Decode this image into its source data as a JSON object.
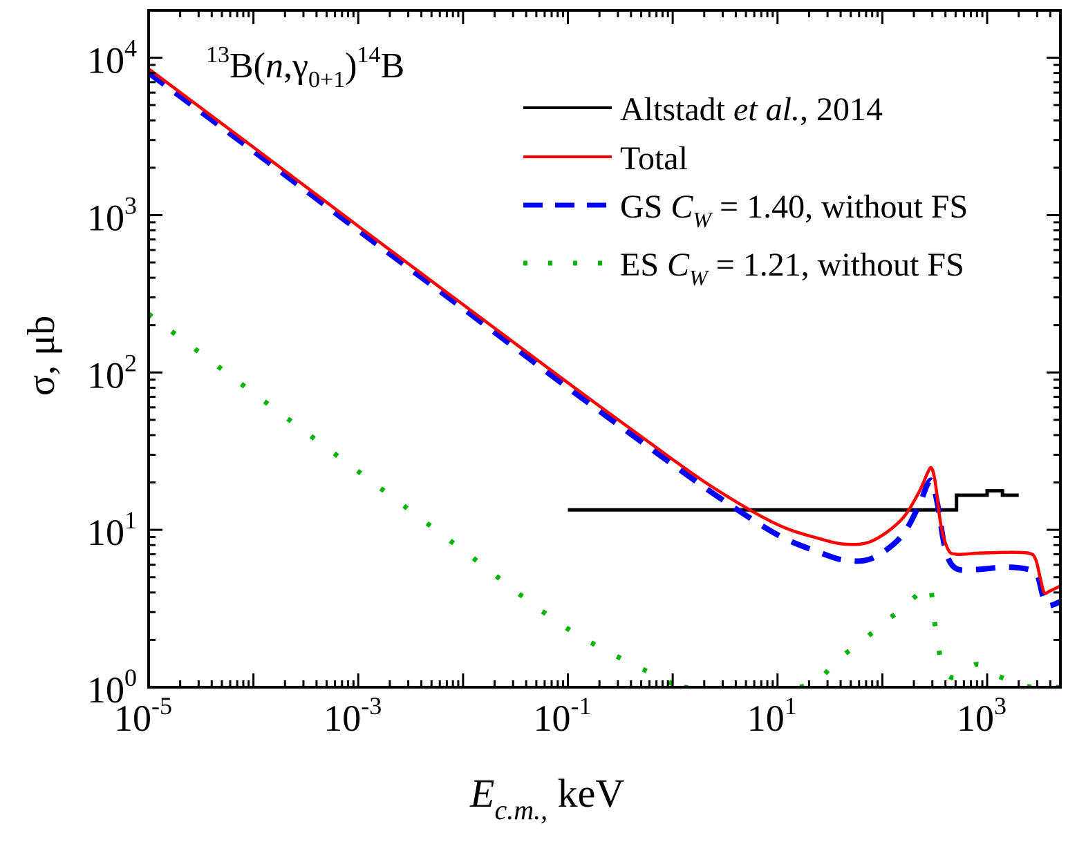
{
  "chart_data": {
    "type": "line",
    "title": "13B(n,γ0+1)14B",
    "title_parts": {
      "pre_sup": "13",
      "base": "B(",
      "italic": "n",
      "comma_gamma": ",γ",
      "sub": "0+1",
      "close": ")",
      "post_sup": "14",
      "end": "B"
    },
    "xlabel": "E_c.m., keV",
    "xlabel_parts": {
      "italic": "E",
      "sub": "c.m.,",
      "unit": " keV"
    },
    "ylabel": "σ, μb",
    "xscale": "log",
    "yscale": "log",
    "xlim": [
      1e-05,
      5000
    ],
    "ylim": [
      1,
      20000
    ],
    "grid": false,
    "legend_position": "top-right",
    "x_ticks": [
      {
        "value": 1e-05,
        "base": "10",
        "exp": "-5"
      },
      {
        "value": 0.001,
        "base": "10",
        "exp": "-3"
      },
      {
        "value": 0.1,
        "base": "10",
        "exp": "-1"
      },
      {
        "value": 10,
        "base": "10",
        "exp": "1"
      },
      {
        "value": 1000,
        "base": "10",
        "exp": "3"
      }
    ],
    "y_ticks": [
      {
        "value": 1,
        "base": "10",
        "exp": "0"
      },
      {
        "value": 10,
        "base": "10",
        "exp": "1"
      },
      {
        "value": 100,
        "base": "10",
        "exp": "2"
      },
      {
        "value": 1000,
        "base": "10",
        "exp": "3"
      },
      {
        "value": 10000,
        "base": "10",
        "exp": "4"
      }
    ],
    "series": [
      {
        "name": "Altstadt et al., 2014",
        "legend_parts": [
          "Altstadt ",
          "et al.",
          ", 2014"
        ],
        "color": "#000000",
        "style": "solid-step",
        "x": [
          0.1,
          510,
          510,
          1000,
          1000,
          1400,
          1400,
          2000
        ],
        "y": [
          13.4,
          13.4,
          16.6,
          16.6,
          17.7,
          17.7,
          16.6,
          16.6
        ]
      },
      {
        "name": "Total",
        "legend_parts": [
          "Total"
        ],
        "color": "#ff0000",
        "style": "solid",
        "x": [
          1e-05,
          0.0001,
          0.001,
          0.01,
          0.1,
          1,
          3,
          10,
          25,
          45,
          80,
          150,
          220,
          270,
          295,
          320,
          360,
          420,
          500,
          800,
          1500,
          2500,
          2900,
          3200,
          3500,
          4000,
          5000
        ],
        "y": [
          8500,
          2700,
          850,
          270,
          86,
          28,
          17,
          10.8,
          8.8,
          8.1,
          8.5,
          11.5,
          17,
          23,
          24.7,
          20,
          11,
          7.6,
          7.0,
          7.1,
          7.2,
          7.1,
          6.5,
          5.0,
          4.0,
          4.1,
          4.4
        ]
      },
      {
        "name": "GS C_W = 1.40, without FS",
        "legend_parts": [
          "GS ",
          "C",
          "W",
          " = 1.40, without FS"
        ],
        "color": "#0000ff",
        "style": "dashed",
        "x": [
          1e-05,
          0.0001,
          0.001,
          0.01,
          0.1,
          1,
          3,
          10,
          25,
          45,
          80,
          150,
          220,
          270,
          300,
          340,
          400,
          500,
          800,
          1500,
          2500,
          3000,
          3400,
          3800,
          5000
        ],
        "y": [
          8000,
          2550,
          800,
          255,
          80,
          26,
          15.5,
          9.3,
          7.2,
          6.4,
          6.6,
          9.0,
          14,
          19.5,
          20,
          14,
          7.5,
          5.7,
          5.6,
          5.8,
          5.6,
          5.2,
          3.8,
          3.3,
          3.5
        ]
      },
      {
        "name": "ES C_W = 1.21, without FS",
        "legend_parts": [
          "ES ",
          "C",
          "W",
          " = 1.21, without FS"
        ],
        "color": "#00b400",
        "style": "dotted",
        "x": [
          1e-05,
          0.0001,
          0.001,
          0.01,
          0.1,
          1,
          1.2,
          16,
          40,
          100,
          200,
          280,
          310,
          340,
          380,
          500,
          800,
          1200,
          2000,
          2800,
          5000
        ],
        "y": [
          235,
          74,
          23.5,
          7.4,
          2.35,
          1.05,
          1.0,
          1.0,
          1.55,
          2.5,
          3.7,
          4.4,
          2.8,
          1.9,
          1.3,
          1.15,
          1.4,
          1.2,
          1.05,
          1.0,
          1.0
        ]
      }
    ]
  }
}
